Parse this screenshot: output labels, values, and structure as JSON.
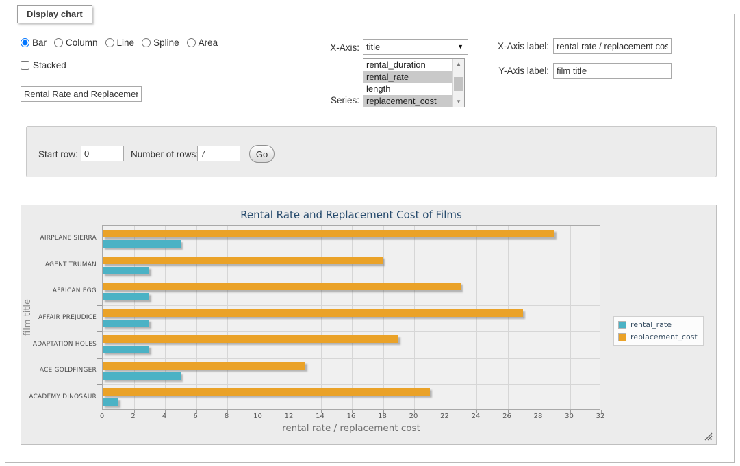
{
  "form": {
    "fieldset_legend": "Display chart",
    "chart_types": [
      "Bar",
      "Column",
      "Line",
      "Spline",
      "Area"
    ],
    "chart_type_selected": "Bar",
    "stacked_label": "Stacked",
    "title_input_value": "Rental Rate and Replacement Cost of Films",
    "x_axis_select_label": "X-Axis:",
    "x_axis_selected": "title",
    "series_select_label": "Series:",
    "series_options": [
      {
        "label": "rental_duration",
        "selected": false
      },
      {
        "label": "rental_rate",
        "selected": true
      },
      {
        "label": "length",
        "selected": false
      },
      {
        "label": "replacement_cost",
        "selected": true
      }
    ],
    "x_axis_label_caption": "X-Axis label:",
    "x_axis_label_value": "rental rate / replacement cost",
    "y_axis_label_caption": "Y-Axis label:",
    "y_axis_label_value": "film title"
  },
  "pager": {
    "start_row_label": "Start row:",
    "start_row_value": "0",
    "num_rows_label": "Number of rows:",
    "num_rows_value": "7",
    "go_label": "Go"
  },
  "icons": {
    "select_arrow": "▼",
    "scroll_up": "▲",
    "scroll_down": "▼"
  },
  "chart_data": {
    "type": "bar",
    "orientation": "horizontal",
    "title": "Rental Rate and Replacement Cost of Films",
    "categories": [
      "AIRPLANE SIERRA",
      "AGENT TRUMAN",
      "AFRICAN EGG",
      "AFFAIR PREJUDICE",
      "ADAPTATION HOLES",
      "ACE GOLDFINGER",
      "ACADEMY DINOSAUR"
    ],
    "series": [
      {
        "name": "rental_rate",
        "color": "#4bb2c5",
        "values": [
          4.99,
          2.99,
          2.99,
          2.99,
          2.99,
          4.99,
          0.99
        ]
      },
      {
        "name": "replacement_cost",
        "color": "#EAA228",
        "values": [
          28.99,
          17.99,
          22.99,
          26.99,
          18.99,
          12.99,
          20.99
        ]
      }
    ],
    "xlabel": "rental rate / replacement cost",
    "ylabel": "film title",
    "xlim": [
      0,
      32
    ],
    "x_ticks": [
      0,
      2,
      4,
      6,
      8,
      10,
      12,
      14,
      16,
      18,
      20,
      22,
      24,
      26,
      28,
      30,
      32
    ],
    "grid": true,
    "legend_position": "right"
  }
}
